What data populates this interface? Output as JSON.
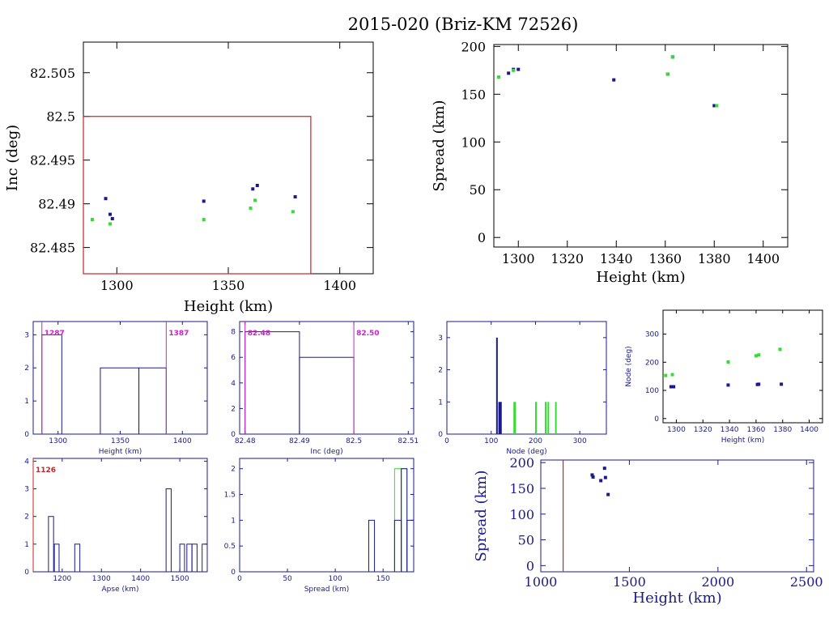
{
  "title": "2015-020 (Briz-KM 72526)",
  "colors": {
    "blue": "#1a1a8c",
    "green": "#33dd33",
    "red": "#cc2222",
    "magenta": "#cc22cc",
    "axis": "#1a1a8c",
    "black": "#000000"
  },
  "chart_data": [
    {
      "id": "inc_vs_height",
      "type": "scatter",
      "xlabel": "Height (km)",
      "ylabel": "Inc (deg)",
      "xlim": [
        1285,
        1415
      ],
      "ylim": [
        82.482,
        82.5085
      ],
      "xticks": [
        1300,
        1350,
        1400
      ],
      "yticks": [
        82.485,
        82.49,
        82.495,
        82.5,
        82.505
      ],
      "ytick_labels": [
        "82.485",
        "82.49",
        "82.495",
        "82.5",
        "82.505"
      ],
      "series": [
        {
          "color": "blue",
          "x": [
            1295,
            1297,
            1298,
            1339,
            1361,
            1363,
            1380
          ],
          "y": [
            82.4906,
            82.4888,
            82.4883,
            82.4903,
            82.4917,
            82.4921,
            82.4908
          ]
        },
        {
          "color": "green",
          "x": [
            1289,
            1297,
            1339,
            1360,
            1362,
            1379
          ],
          "y": [
            82.4882,
            82.4877,
            82.4882,
            82.4895,
            82.4904,
            82.4891
          ]
        }
      ],
      "box": {
        "x": [
          1285,
          1387
        ],
        "y": [
          82.482,
          82.5
        ],
        "color": "red"
      }
    },
    {
      "id": "spread_vs_height",
      "type": "scatter",
      "xlabel": "Height (km)",
      "ylabel": "Spread (km)",
      "xlim": [
        1290,
        1410
      ],
      "ylim": [
        -10,
        202
      ],
      "xticks": [
        1300,
        1320,
        1340,
        1360,
        1380,
        1400
      ],
      "yticks": [
        0,
        50,
        100,
        150,
        200
      ],
      "series": [
        {
          "color": "blue",
          "x": [
            1296,
            1298,
            1300,
            1339,
            1361,
            1363,
            1380
          ],
          "y": [
            172,
            176,
            176,
            165,
            171,
            189,
            138
          ]
        },
        {
          "color": "green",
          "x": [
            1292,
            1298,
            1361,
            1363,
            1381
          ],
          "y": [
            168,
            175,
            171,
            189,
            138
          ]
        }
      ]
    },
    {
      "id": "height_hist",
      "type": "bar",
      "xlabel": "Height (km)",
      "ylabel": "",
      "xlim": [
        1280,
        1420
      ],
      "ylim": [
        0,
        3.4
      ],
      "xticks": [
        1300,
        1350,
        1400
      ],
      "yticks": [
        0,
        1,
        2,
        3
      ],
      "bins": [
        {
          "x0": 1287,
          "x1": 1303,
          "count": 3
        },
        {
          "x0": 1334,
          "x1": 1365,
          "count": 2
        },
        {
          "x0": 1365,
          "x1": 1387,
          "count": 2
        }
      ],
      "markers": [
        {
          "x": 1287,
          "label": "1287",
          "color": "magenta"
        },
        {
          "x": 1387,
          "label": "1387",
          "color": "magenta"
        }
      ]
    },
    {
      "id": "inc_hist",
      "type": "bar",
      "xlabel": "Inc (deg)",
      "ylabel": "",
      "xlim": [
        82.479,
        82.511
      ],
      "ylim": [
        0,
        8.8
      ],
      "xticks": [
        82.48,
        82.49,
        82.5,
        82.51
      ],
      "xtick_labels": [
        "82.48",
        "82.49",
        "82.5",
        "82.51"
      ],
      "yticks": [
        0,
        2,
        4,
        6,
        8
      ],
      "bins": [
        {
          "x0": 82.48,
          "x1": 82.49,
          "count": 8
        },
        {
          "x0": 82.49,
          "x1": 82.5,
          "count": 6
        }
      ],
      "markers": [
        {
          "x": 82.48,
          "label": "82.48",
          "color": "magenta"
        },
        {
          "x": 82.5,
          "label": "82.50",
          "color": "magenta"
        }
      ]
    },
    {
      "id": "node_hist",
      "type": "bar",
      "xlabel": "Node (deg)",
      "ylabel": "",
      "xlim": [
        0,
        360
      ],
      "ylim": [
        0,
        3.5
      ],
      "xticks": [
        0,
        100,
        200,
        300
      ],
      "yticks": [
        0,
        1,
        2,
        3
      ],
      "bars": [
        {
          "x": 113,
          "count": 3,
          "color": "blue",
          "width": 2
        },
        {
          "x": 119,
          "count": 1,
          "color": "blue",
          "width": 3
        },
        {
          "x": 122,
          "count": 1,
          "color": "blue",
          "width": 2
        },
        {
          "x": 153,
          "count": 1,
          "color": "green",
          "width": 3
        },
        {
          "x": 201,
          "count": 1,
          "color": "green",
          "width": 2
        },
        {
          "x": 223,
          "count": 1,
          "color": "green",
          "width": 2
        },
        {
          "x": 229,
          "count": 1,
          "color": "green",
          "width": 2
        },
        {
          "x": 246,
          "count": 1,
          "color": "green",
          "width": 2
        }
      ]
    },
    {
      "id": "node_vs_height",
      "type": "scatter",
      "xlabel": "Height (km)",
      "ylabel": "Node (deg)",
      "xlim": [
        1290,
        1410
      ],
      "ylim": [
        -15,
        385
      ],
      "xticks": [
        1300,
        1320,
        1340,
        1360,
        1380,
        1400
      ],
      "yticks": [
        0,
        100,
        200,
        300
      ],
      "series": [
        {
          "color": "blue",
          "x": [
            1296,
            1298,
            1339,
            1361,
            1362,
            1379
          ],
          "y": [
            113,
            113,
            119,
            121,
            122,
            122
          ]
        },
        {
          "color": "green",
          "x": [
            1292,
            1297,
            1339,
            1360,
            1362,
            1378
          ],
          "y": [
            153,
            156,
            201,
            223,
            226,
            246
          ]
        }
      ]
    },
    {
      "id": "apse_hist",
      "type": "bar",
      "xlabel": "Apse (km)",
      "ylabel": "",
      "xlim": [
        1126,
        1570
      ],
      "ylim": [
        0,
        4.1
      ],
      "xticks": [
        1200,
        1300,
        1400,
        1500
      ],
      "yticks": [
        0,
        1,
        2,
        3,
        4
      ],
      "bins": [
        {
          "x0": 1165,
          "x1": 1178,
          "count": 2
        },
        {
          "x0": 1180,
          "x1": 1192,
          "count": 1
        },
        {
          "x0": 1232,
          "x1": 1245,
          "count": 1
        },
        {
          "x0": 1465,
          "x1": 1478,
          "count": 3
        },
        {
          "x0": 1500,
          "x1": 1512,
          "count": 1
        },
        {
          "x0": 1518,
          "x1": 1531,
          "count": 1
        },
        {
          "x0": 1531,
          "x1": 1544,
          "count": 1
        },
        {
          "x0": 1557,
          "x1": 1570,
          "count": 1
        }
      ],
      "markers": [
        {
          "x": 1126,
          "label": "1126",
          "color": "red"
        }
      ]
    },
    {
      "id": "spread_hist",
      "type": "bar",
      "xlabel": "Spread (km)",
      "ylabel": "",
      "xlim": [
        0,
        182
      ],
      "ylim": [
        0,
        2.2
      ],
      "xticks": [
        0,
        50,
        100,
        150
      ],
      "yticks": [
        0,
        0.5,
        1,
        1.5,
        2
      ],
      "ytick_labels": [
        "0",
        "0.5",
        "1",
        "1.5",
        "2"
      ],
      "bins_green": [
        {
          "x0": 162,
          "x1": 169,
          "count": 2
        },
        {
          "x0": 169,
          "x1": 175,
          "count": 2
        }
      ],
      "bins_blue": [
        {
          "x0": 135,
          "x1": 141,
          "count": 1
        },
        {
          "x0": 162,
          "x1": 169,
          "count": 1
        },
        {
          "x0": 169,
          "x1": 175,
          "count": 2
        },
        {
          "x0": 175,
          "x1": 182,
          "count": 1
        }
      ]
    },
    {
      "id": "spread_vs_height_wide",
      "type": "scatter",
      "xlabel": "Height (km)",
      "ylabel": "Spread (km)",
      "xlim": [
        1000,
        2540
      ],
      "ylim": [
        -12,
        205
      ],
      "xticks": [
        1000,
        1500,
        2000,
        2500
      ],
      "yticks": [
        0,
        50,
        100,
        150,
        200
      ],
      "series": [
        {
          "color": "blue",
          "x": [
            1290,
            1295,
            1339,
            1360,
            1365,
            1380
          ],
          "y": [
            176,
            172,
            165,
            189,
            171,
            138
          ]
        }
      ],
      "vline": {
        "x": 1126,
        "color": "red"
      }
    }
  ]
}
